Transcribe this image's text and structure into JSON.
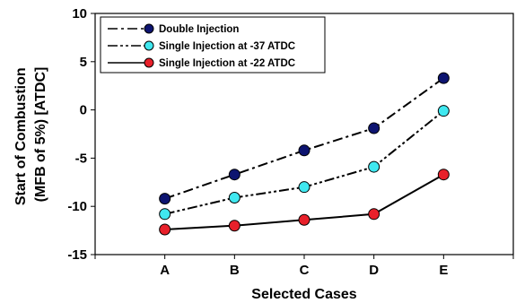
{
  "chart_data": {
    "type": "line",
    "xlabel": "Selected Cases",
    "ylabel_lines": [
      "Start of Combustion",
      "(MFB of 5%) [ATDC]"
    ],
    "categories": [
      "A",
      "B",
      "C",
      "D",
      "E"
    ],
    "ylim": [
      -15,
      10
    ],
    "yticks": [
      -15,
      -10,
      -5,
      0,
      5,
      10
    ],
    "ytick_labels": [
      "-15",
      "-10",
      "-5",
      "0",
      "5",
      "10"
    ],
    "grid": false,
    "legend_position": "top-left",
    "series": [
      {
        "name": "Double Injection",
        "color": "#0d1470",
        "line_style": "dash-dot",
        "values": [
          -9.2,
          -6.7,
          -4.2,
          -1.9,
          3.3
        ]
      },
      {
        "name": "Single Injection at -37 ATDC",
        "color": "#40e8f0",
        "line_style": "dash-dot-dot",
        "values": [
          -10.8,
          -9.1,
          -8.0,
          -5.9,
          -0.1
        ]
      },
      {
        "name": "Single Injection at -22 ATDC",
        "color": "#e8202a",
        "line_style": "solid",
        "values": [
          -12.4,
          -12.0,
          -11.4,
          -10.8,
          -6.7
        ]
      }
    ]
  }
}
